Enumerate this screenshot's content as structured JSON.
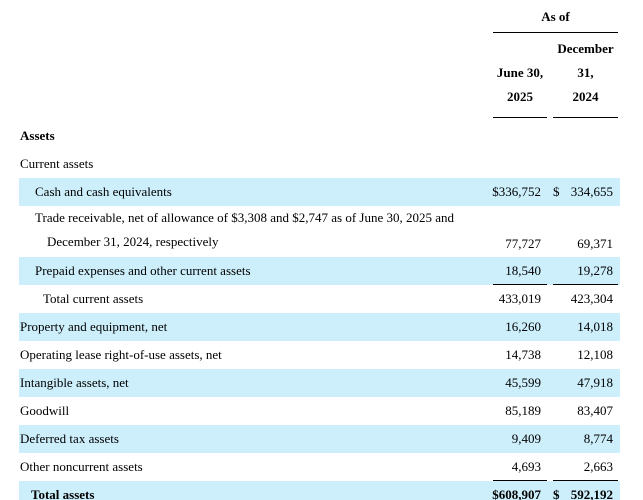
{
  "colors": {
    "highlight": "#cdeffc",
    "rule": "#000000"
  },
  "header": {
    "as_of_label": "As of",
    "columns": [
      {
        "name": "June 30, 2025",
        "lines": [
          "",
          "June 30,",
          "2025"
        ]
      },
      {
        "name": "December 31, 2024",
        "lines": [
          "December",
          "31,",
          "2024"
        ]
      }
    ]
  },
  "sections": {
    "assets_heading": "Assets",
    "current_assets_heading": "Current assets"
  },
  "rows": [
    {
      "label": "Cash and cash equivalents",
      "col1": "$336,752",
      "col2_dollar": "$",
      "col2": "334,655"
    },
    {
      "label_line1": "Trade receivable, net of allowance of $3,308 and $2,747 as of June 30, 2025 and",
      "label_line2": "December 31, 2024, respectively",
      "col1": "77,727",
      "col2_dollar": "",
      "col2": "69,371"
    },
    {
      "label": "Prepaid expenses and other current assets",
      "col1": "18,540",
      "col2_dollar": "",
      "col2": "19,278"
    },
    {
      "label": "Total current assets",
      "col1": "433,019",
      "col2_dollar": "",
      "col2": "423,304"
    },
    {
      "label": "Property and equipment, net",
      "col1": "16,260",
      "col2_dollar": "",
      "col2": "14,018"
    },
    {
      "label": "Operating lease right-of-use assets, net",
      "col1": "14,738",
      "col2_dollar": "",
      "col2": "12,108"
    },
    {
      "label": "Intangible assets, net",
      "col1": "45,599",
      "col2_dollar": "",
      "col2": "47,918"
    },
    {
      "label": "Goodwill",
      "col1": "85,189",
      "col2_dollar": "",
      "col2": "83,407"
    },
    {
      "label": "Deferred tax assets",
      "col1": "9,409",
      "col2_dollar": "",
      "col2": "8,774"
    },
    {
      "label": "Other noncurrent assets",
      "col1": "4,693",
      "col2_dollar": "",
      "col2": "2,663"
    },
    {
      "label": "Total assets",
      "col1": "$608,907",
      "col2_dollar": "$",
      "col2": "592,192"
    }
  ]
}
